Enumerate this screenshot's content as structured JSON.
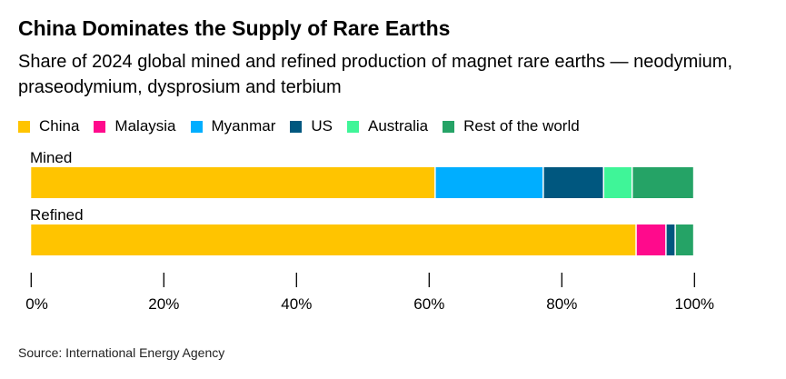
{
  "chart_data": {
    "type": "bar",
    "orientation": "horizontal",
    "stacked": true,
    "title": "China Dominates the Supply of Rare Earths",
    "subtitle": "Share of 2024 global mined and refined production of magnet rare earths — neodymium, praseodymium, dysprosium and terbium",
    "categories": [
      "Mined",
      "Refined"
    ],
    "series": [
      {
        "name": "China",
        "color": "#FFC400",
        "values": [
          61.0,
          91.3
        ]
      },
      {
        "name": "Malaysia",
        "color": "#FF0A8C",
        "values": [
          0,
          4.5
        ]
      },
      {
        "name": "Myanmar",
        "color": "#00AEFF",
        "values": [
          16.3,
          0
        ]
      },
      {
        "name": "US",
        "color": "#00577F",
        "values": [
          9.1,
          1.4
        ]
      },
      {
        "name": "Australia",
        "color": "#3FF598",
        "values": [
          4.3,
          0
        ]
      },
      {
        "name": "Rest of the world",
        "color": "#25A366",
        "values": [
          9.3,
          2.8
        ]
      }
    ],
    "xlim": [
      0,
      100
    ],
    "xticks": [
      "0%",
      "20%",
      "40%",
      "60%",
      "80%",
      "100%"
    ],
    "legend": "top-left",
    "source": "Source: International Energy Agency"
  }
}
